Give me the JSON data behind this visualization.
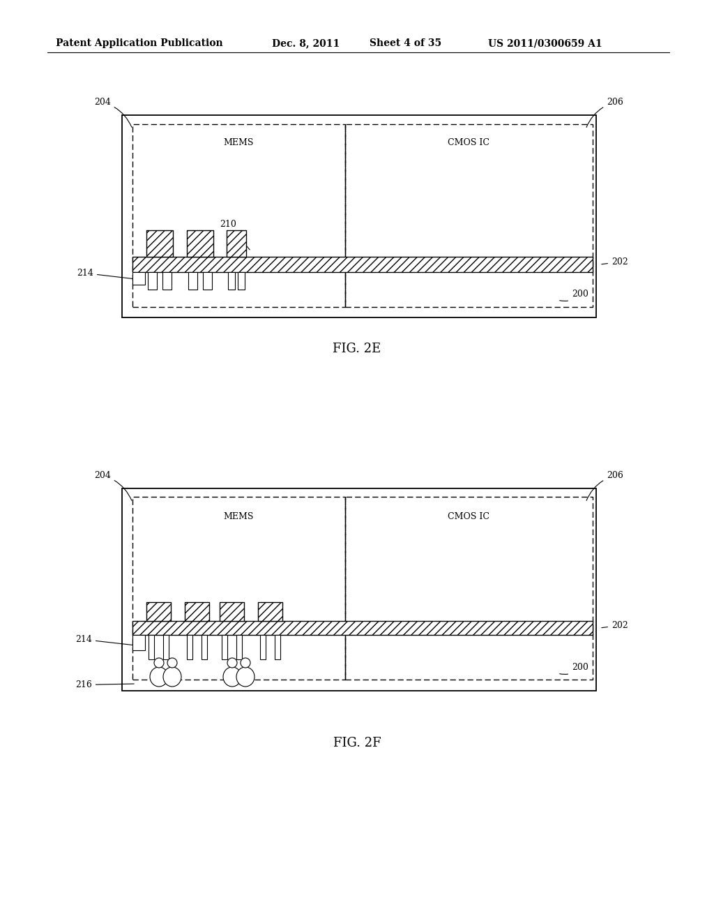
{
  "bg_color": "#ffffff",
  "lc": "#000000",
  "header_text": "Patent Application Publication",
  "header_date": "Dec. 8, 2011",
  "header_sheet": "Sheet 4 of 35",
  "header_patent": "US 2011/0300659 A1",
  "fig2e_label": "FIG. 2E",
  "fig2f_label": "FIG. 2F",
  "mems_label": "MEMS",
  "cmos_label": "CMOS IC"
}
